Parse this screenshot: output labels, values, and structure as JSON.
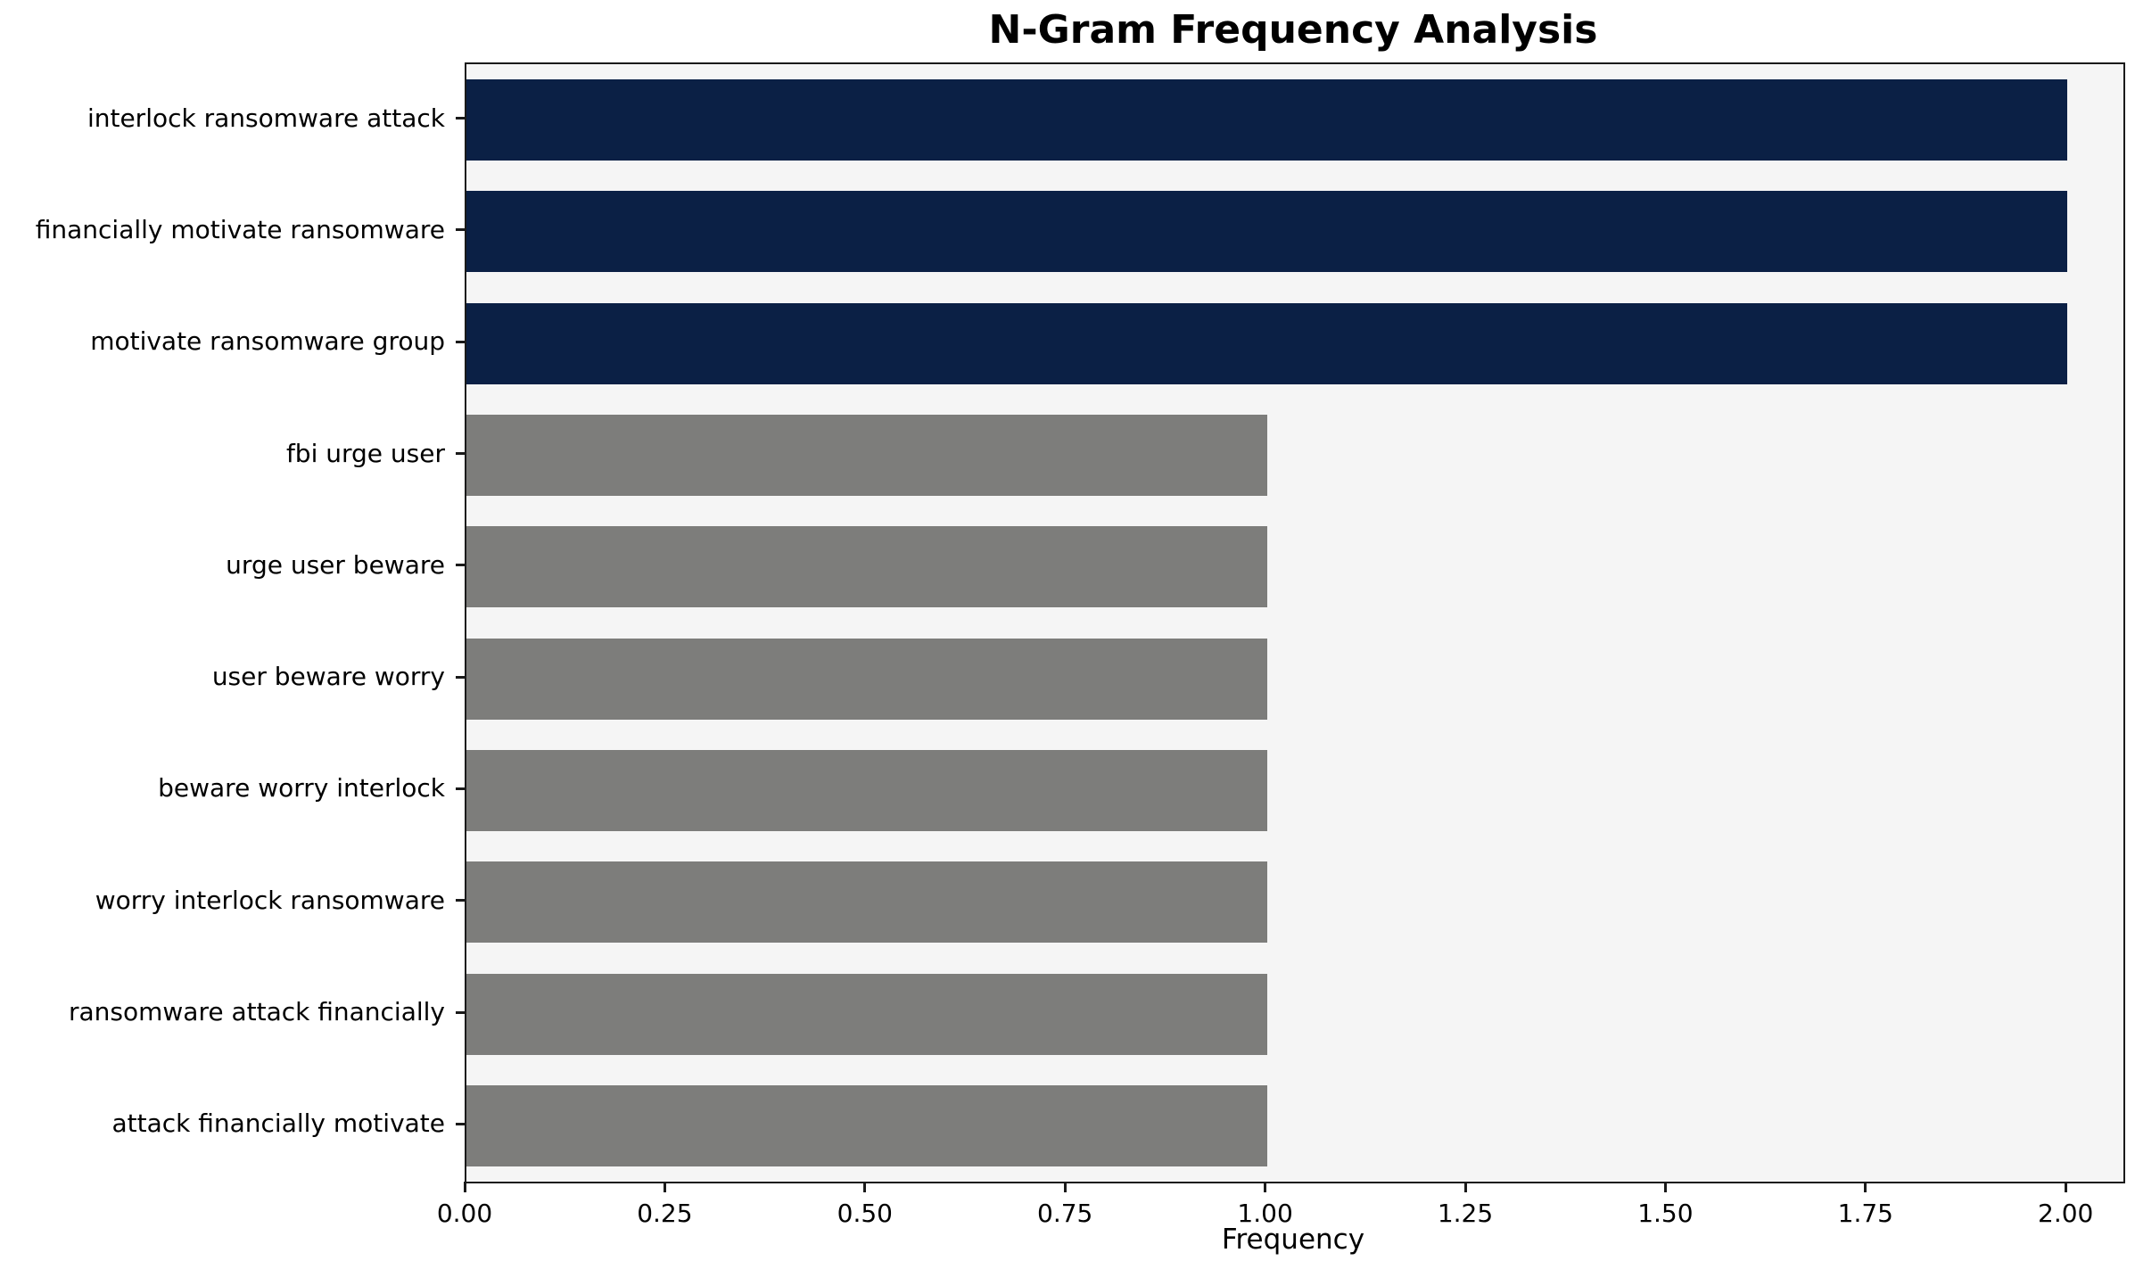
{
  "chart_data": {
    "type": "bar",
    "orientation": "horizontal",
    "title": "N-Gram Frequency Analysis",
    "xlabel": "Frequency",
    "ylabel": "",
    "categories": [
      "interlock ransomware attack",
      "financially motivate ransomware",
      "motivate ransomware group",
      "fbi urge user",
      "urge user beware",
      "user beware worry",
      "beware worry interlock",
      "worry interlock ransomware",
      "ransomware attack financially",
      "attack financially motivate"
    ],
    "values": [
      2,
      2,
      2,
      1,
      1,
      1,
      1,
      1,
      1,
      1
    ],
    "bar_colors": [
      "#0b2045",
      "#0b2045",
      "#0b2045",
      "#7d7d7b",
      "#7d7d7b",
      "#7d7d7b",
      "#7d7d7b",
      "#7d7d7b",
      "#7d7d7b",
      "#7d7d7b"
    ],
    "xlim": [
      0,
      2.07
    ],
    "xticks": [
      0,
      0.25,
      0.5,
      0.75,
      1,
      1.25,
      1.5,
      1.75,
      2
    ],
    "xtick_labels": [
      "0.00",
      "0.25",
      "0.50",
      "0.75",
      "1.00",
      "1.25",
      "1.50",
      "1.75",
      "2.00"
    ],
    "grid": false,
    "legend": null,
    "colors": {
      "highlight": "#0b2045",
      "default": "#7d7d7b",
      "plot_background": "#f5f5f5",
      "page_background": "#ffffff",
      "frame": "#1a1a1a",
      "text": "#000000"
    }
  }
}
